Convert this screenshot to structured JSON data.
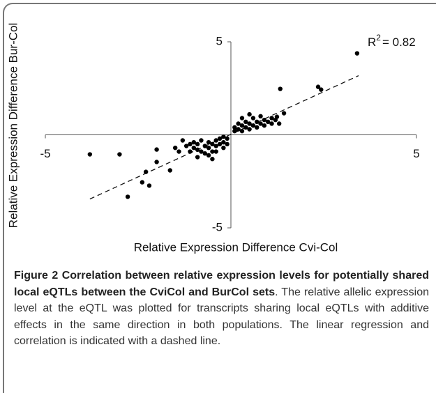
{
  "chart_data": {
    "type": "scatter",
    "xlabel": "Relative Expression Difference Cvi-Col",
    "ylabel": "Relative Expression Difference Bur-Col",
    "annotation": [
      "R",
      "2",
      "= 0.82"
    ],
    "xlim": [
      -5,
      5
    ],
    "ylim": [
      -5,
      5
    ],
    "xticks": [
      -5,
      5
    ],
    "yticks": [
      -5,
      5
    ],
    "color": "#000000",
    "x": [
      3.4,
      2.35,
      2.43,
      1.33,
      -3.8,
      -3.0,
      -2.0,
      -2.0,
      -2.29,
      -2.39,
      -2.2,
      -2.78,
      -1.64,
      1.43,
      1.24,
      -1.3,
      -1.2,
      -1.1,
      -1.0,
      -1.0,
      -0.9,
      -0.9,
      -0.8,
      -0.8,
      -0.7,
      -0.7,
      -0.6,
      -0.6,
      -0.5,
      -0.5,
      -0.4,
      -0.4,
      -0.3,
      -0.3,
      -0.2,
      -0.2,
      -0.1,
      -1.5,
      -1.4,
      -0.9,
      -0.6,
      -0.5,
      -1.1,
      -0.2,
      -0.1,
      -0.4,
      0.1,
      0.1,
      0.2,
      0.2,
      0.3,
      0.3,
      0.4,
      0.4,
      0.5,
      0.5,
      0.6,
      0.6,
      0.7,
      0.7,
      0.8,
      0.8,
      0.9,
      0.9,
      1.0,
      1.1,
      1.1,
      1.2,
      0.5,
      0.3,
      1.3
    ],
    "y": [
      4.38,
      2.58,
      2.43,
      2.47,
      -1.05,
      -1.05,
      -0.79,
      -1.46,
      -1.99,
      -2.55,
      -2.73,
      -3.33,
      -1.91,
      1.16,
      0.97,
      -0.3,
      -0.6,
      -0.5,
      -0.7,
      -0.4,
      -0.8,
      -0.5,
      -0.3,
      -0.9,
      -0.6,
      -1.0,
      -0.4,
      -0.7,
      -0.5,
      -0.9,
      -0.3,
      -0.6,
      -0.2,
      -0.5,
      -0.1,
      -0.4,
      -0.2,
      -0.7,
      -0.9,
      -1.2,
      -1.1,
      -1.3,
      -0.9,
      -0.7,
      -0.5,
      -0.9,
      0.2,
      0.4,
      0.3,
      0.6,
      0.2,
      0.5,
      0.4,
      0.7,
      0.3,
      0.6,
      0.5,
      0.9,
      0.4,
      0.7,
      0.6,
      1.0,
      0.5,
      0.8,
      0.7,
      0.6,
      0.9,
      0.8,
      1.1,
      0.9,
      0.6
    ],
    "trendline": {
      "x": [
        -3.8,
        3.44
      ],
      "y": [
        -3.45,
        3.18
      ]
    }
  },
  "caption": {
    "label": "Figure 2",
    "title": "Correlation between relative expression levels for potentially shared local eQTLs between the CviCol and BurCol sets",
    "text": ". The relative allelic expression level at the eQTL was plotted for transcripts sharing local eQTLs with additive effects in the same direction in both populations. The linear regression and correlation is indicated with a dashed line."
  }
}
